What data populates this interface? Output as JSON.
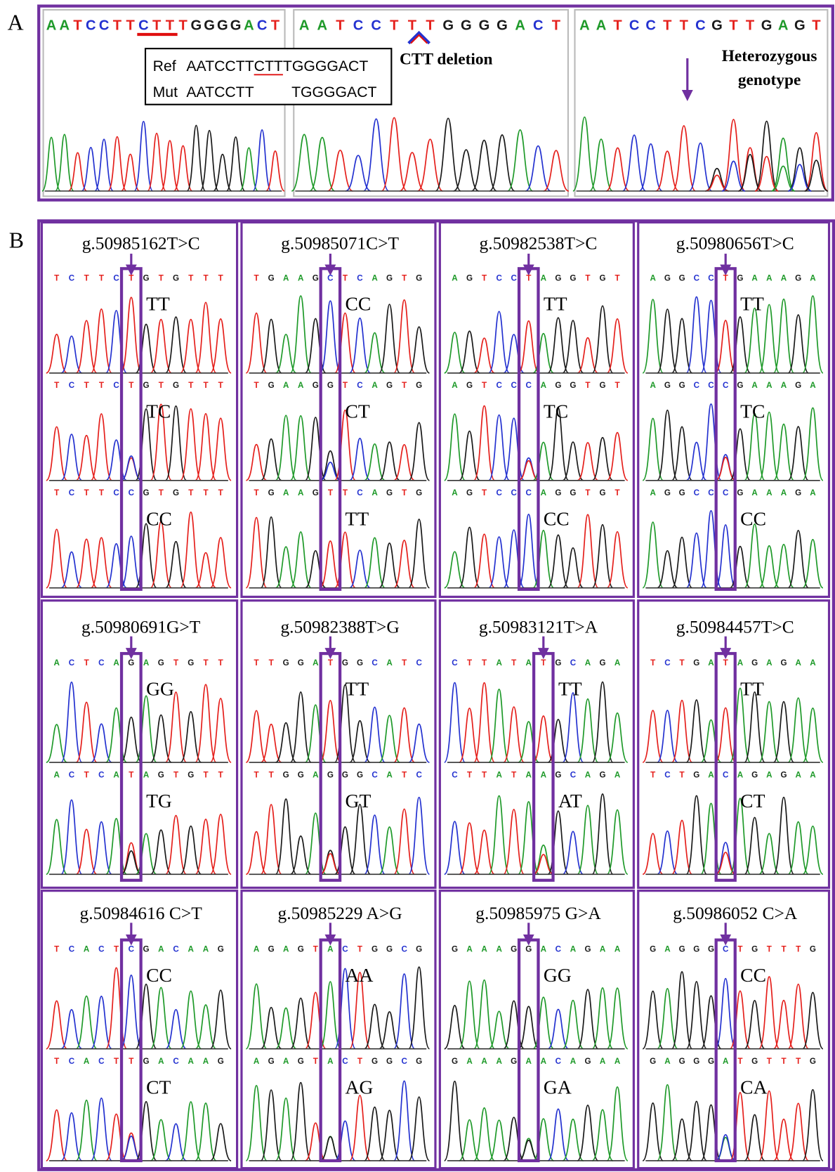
{
  "panel_a": {
    "label": "A",
    "sequences": [
      "AATCCTTCTTTGGGGACT",
      "AATCCTTTGGGGACT",
      "AATCCTTCGTTGAGT"
    ],
    "alignment": {
      "ref_label": "Ref",
      "ref": "AATCCTTCTTTGGGGACT",
      "mut_label": "Mut",
      "mut": [
        "AATCCTT",
        "TGGGGACT"
      ]
    },
    "deletion_note": "CTT deletion",
    "heterozygous_note": [
      "Heterozygous",
      "genotype"
    ]
  },
  "panel_b": {
    "label": "B",
    "cells": [
      {
        "title": "g.50985162T>C",
        "traces": [
          {
            "sequence": "TCTTCTGTGTTT",
            "genotype": "TT"
          },
          {
            "sequence": "TCTTCTGTGTTT",
            "genotype": "TC"
          },
          {
            "sequence": "TCTTCCGTGTTT",
            "genotype": "CC"
          }
        ]
      },
      {
        "title": "g.50985071C>T",
        "traces": [
          {
            "sequence": "TGAAGCTCAGTG",
            "genotype": "CC"
          },
          {
            "sequence": "TGAAGGTCAGTG",
            "genotype": "CT"
          },
          {
            "sequence": "TGAAGTTCAGTG",
            "genotype": "TT"
          }
        ]
      },
      {
        "title": "g.50982538T>C",
        "traces": [
          {
            "sequence": "AGTCCTAGGTGT",
            "genotype": "TT"
          },
          {
            "sequence": "AGTCCCAGGTGT",
            "genotype": "TC"
          },
          {
            "sequence": "AGTCCCAGGTGT",
            "genotype": "CC"
          }
        ]
      },
      {
        "title": "g.50980656T>C",
        "traces": [
          {
            "sequence": "AGGCCTGAAAGA",
            "genotype": "TT"
          },
          {
            "sequence": "AGGCCCGAAAGA",
            "genotype": "TC"
          },
          {
            "sequence": "AGGCCCGAAAGA",
            "genotype": "CC"
          }
        ]
      },
      {
        "title": "g.50980691G>T",
        "traces": [
          {
            "sequence": "ACTCAGAGTGTT",
            "genotype": "GG"
          },
          {
            "sequence": "ACTCATAGTGTT",
            "genotype": "TG"
          }
        ]
      },
      {
        "title": "g.50982388T>G",
        "traces": [
          {
            "sequence": "TTGGATGGCATC",
            "genotype": "TT"
          },
          {
            "sequence": "TTGGAGGGCATC",
            "genotype": "GT"
          }
        ]
      },
      {
        "title": "g.50983121T>A",
        "traces": [
          {
            "sequence": "CTTATATGCAGA",
            "genotype": "TT"
          },
          {
            "sequence": "CTTATAAGCAGA",
            "genotype": "AT"
          }
        ]
      },
      {
        "title": "g.50984457T>C",
        "traces": [
          {
            "sequence": "TCTGATAGAGAA",
            "genotype": "TT"
          },
          {
            "sequence": "TCTGACAGAGAA",
            "genotype": "CT"
          }
        ]
      },
      {
        "title": "g.50984616 C>T",
        "traces": [
          {
            "sequence": "TCACTCGACAAG",
            "genotype": "CC"
          },
          {
            "sequence": "TCACTTGACAAG",
            "genotype": "CT"
          }
        ]
      },
      {
        "title": "g.50985229 A>G",
        "traces": [
          {
            "sequence": "AGAGTACTGGCG",
            "genotype": "AA"
          },
          {
            "sequence": "AGAGTACTGGCG",
            "genotype": "AG"
          }
        ]
      },
      {
        "title": "g.50985975 G>A",
        "traces": [
          {
            "sequence": "GAAAGGACAGAA",
            "genotype": "GG"
          },
          {
            "sequence": "GAAAGAACAGAA",
            "genotype": "GA"
          }
        ]
      },
      {
        "title": "g.50986052 C>A",
        "traces": [
          {
            "sequence": "GAGGGCTGTTTG",
            "genotype": "CC"
          },
          {
            "sequence": "GAGGGATGTTTG",
            "genotype": "CA"
          }
        ]
      }
    ]
  }
}
